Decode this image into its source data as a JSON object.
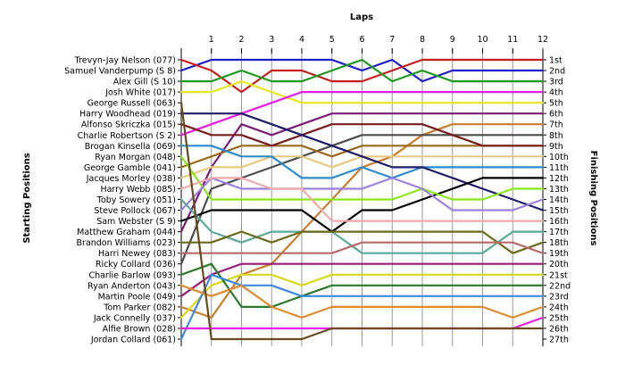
{
  "chart_data": {
    "type": "line",
    "title": "",
    "xlabel": "Laps",
    "ylabel_left": "Starting Positions",
    "ylabel_right": "Finishing Positions",
    "x": [
      0,
      1,
      2,
      3,
      4,
      5,
      6,
      7,
      8,
      9,
      10,
      11,
      12
    ],
    "x_tick_labels": [
      "1",
      "2",
      "3",
      "4",
      "5",
      "6",
      "7",
      "8",
      "9",
      "10",
      "11",
      "12"
    ],
    "ylim": [
      1,
      27
    ],
    "grid": "vertical",
    "drivers": [
      "Trevyn-Jay Nelson (077)",
      "Samuel Vanderpump (S 8)",
      "Alex Gill (S 10)",
      "Josh White (017)",
      "George Russell (063)",
      "Harry Woodhead (019)",
      "Alfonso Skriczka (015)",
      "Charlie Robertson (S 2)",
      "Brogan Kinsella (069)",
      "Ryan Morgan (048)",
      "George Gamble (041)",
      "Jacques Morley (038)",
      "Harry Webb (085)",
      "Toby Sowery (051)",
      "Steve Pollock (067)",
      "Sam Webster (S 9)",
      "Matthew Graham (044)",
      "Brandon Williams (023)",
      "Harri Newey (083)",
      "Ricky Collard (036)",
      "Charlie Barlow (093)",
      "Ryan Anderton (043)",
      "Martin Poole (049)",
      "Tom Parker (082)",
      "Jack Connelly (037)",
      "Alfie Brown (028)",
      "Jordan Collard (061)"
    ],
    "finish_labels": [
      "1st",
      "2nd",
      "3rd",
      "4th",
      "5th",
      "6th",
      "7th",
      "8th",
      "9th",
      "10th",
      "11th",
      "12th",
      "13th",
      "14th",
      "15th",
      "16th",
      "17th",
      "18th",
      "19th",
      "20th",
      "21st",
      "22nd",
      "23rd",
      "24th",
      "25th",
      "26th",
      "27th"
    ],
    "series": [
      {
        "color": "#1c1cc8",
        "values": [
          2,
          1,
          1,
          1,
          1,
          1,
          2,
          1,
          3,
          2,
          2,
          2,
          2
        ]
      },
      {
        "color": "#c81c1c",
        "values": [
          1,
          2,
          4,
          2,
          2,
          3,
          3,
          2,
          1,
          1,
          1,
          1,
          1
        ]
      },
      {
        "color": "#1c9a1c",
        "values": [
          3,
          3,
          2,
          3,
          3,
          2,
          1,
          3,
          2,
          3,
          3,
          3,
          3
        ]
      },
      {
        "color": "#e6e61c",
        "values": [
          4,
          4,
          3,
          4,
          5,
          5,
          5,
          5,
          5,
          5,
          5,
          5,
          5
        ]
      },
      {
        "color": "#e61ce6",
        "values": [
          8,
          7,
          6,
          5,
          4,
          4,
          4,
          4,
          4,
          4,
          4,
          4,
          4
        ]
      },
      {
        "color": "#7a1c7a",
        "values": [
          17,
          11,
          7,
          8,
          7,
          6,
          6,
          6,
          6,
          6,
          6,
          6,
          6
        ]
      },
      {
        "color": "#c87c2c",
        "values": [
          24,
          25,
          21,
          20,
          17,
          14,
          11,
          10,
          8,
          7,
          7,
          7,
          7
        ]
      },
      {
        "color": "#4c4c4c",
        "values": [
          20,
          13,
          12,
          11,
          10,
          9,
          8,
          8,
          8,
          8,
          8,
          8,
          8
        ]
      },
      {
        "color": "#9a6a1c",
        "values": [
          11,
          10,
          9,
          9,
          9,
          10,
          9,
          9,
          9,
          9,
          9,
          9,
          9
        ]
      },
      {
        "color": "#7a1c1c",
        "values": [
          7,
          8,
          8,
          9,
          8,
          7,
          7,
          7,
          7,
          8,
          9,
          9,
          9
        ]
      },
      {
        "color": "#e6c880",
        "values": [
          12,
          11,
          11,
          10,
          10,
          11,
          10,
          10,
          10,
          10,
          10,
          10,
          10
        ]
      },
      {
        "color": "#2c8ad0",
        "values": [
          9,
          9,
          10,
          10,
          12,
          12,
          11,
          12,
          11,
          11,
          11,
          11,
          11
        ]
      },
      {
        "color": "#1c1c6a",
        "values": [
          6,
          6,
          6,
          7,
          8,
          9,
          10,
          11,
          11,
          12,
          13,
          14,
          15
        ]
      },
      {
        "color": "#000000",
        "values": [
          16,
          15,
          15,
          15,
          15,
          17,
          15,
          15,
          14,
          13,
          12,
          12,
          12
        ]
      },
      {
        "color": "#8ae61c",
        "values": [
          10,
          14,
          14,
          14,
          14,
          14,
          14,
          14,
          13,
          14,
          14,
          13,
          13
        ]
      },
      {
        "color": "#9a80e0",
        "values": [
          15,
          12,
          13,
          13,
          13,
          13,
          13,
          12,
          13,
          15,
          15,
          15,
          14
        ]
      },
      {
        "color": "#f0a8a8",
        "values": [
          13,
          12,
          12,
          13,
          13,
          16,
          16,
          16,
          16,
          16,
          16,
          16,
          16
        ]
      },
      {
        "color": "#5aa89a",
        "values": [
          14,
          17,
          18,
          17,
          17,
          17,
          19,
          19,
          19,
          19,
          19,
          17,
          17
        ]
      },
      {
        "color": "#6a6a1c",
        "values": [
          18,
          18,
          17,
          18,
          17,
          17,
          17,
          17,
          17,
          17,
          17,
          19,
          18
        ]
      },
      {
        "color": "#b86a6a",
        "values": [
          19,
          19,
          19,
          19,
          19,
          19,
          18,
          18,
          18,
          18,
          18,
          18,
          19
        ]
      },
      {
        "color": "#9a1c7a",
        "values": [
          23,
          21,
          20,
          20,
          20,
          20,
          20,
          20,
          20,
          20,
          20,
          20,
          20
        ]
      },
      {
        "color": "#d8d81c",
        "values": [
          25,
          22,
          21,
          21,
          22,
          21,
          21,
          21,
          21,
          21,
          21,
          21,
          21
        ]
      },
      {
        "color": "#2c7a2c",
        "values": [
          21,
          20,
          24,
          24,
          23,
          22,
          22,
          22,
          22,
          22,
          22,
          22,
          22
        ]
      },
      {
        "color": "#3c8ae0",
        "values": [
          27,
          21,
          22,
          22,
          23,
          23,
          23,
          23,
          23,
          23,
          23,
          23,
          23
        ]
      },
      {
        "color": "#e08a2c",
        "values": [
          22,
          23,
          22,
          24,
          25,
          24,
          24,
          24,
          24,
          24,
          24,
          25,
          24
        ]
      },
      {
        "color": "#e61ce6",
        "values": [
          26,
          26,
          26,
          26,
          26,
          26,
          26,
          26,
          26,
          26,
          26,
          26,
          25
        ]
      },
      {
        "color": "#6a4a1c",
        "values": [
          5,
          27,
          27,
          27,
          27,
          26,
          26,
          26,
          26,
          26,
          26,
          26,
          26
        ]
      }
    ]
  }
}
